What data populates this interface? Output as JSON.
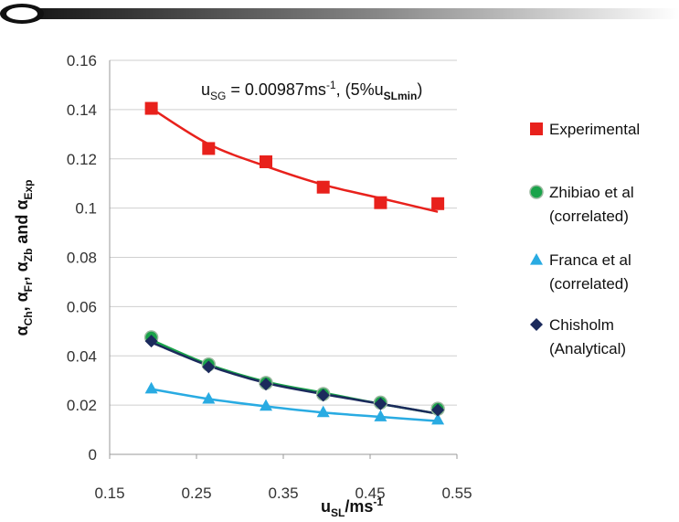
{
  "chart_data": {
    "type": "scatter",
    "title": "",
    "annotation": {
      "prefix": "u",
      "sub1": "SG",
      "mid": " = 0.00987ms",
      "sup": "-1",
      "mid2": ", (5%u",
      "sub2": "SLmin",
      "suffix": ")"
    },
    "xlabel": {
      "base": "u",
      "sub": "SL",
      "mid": "/ms",
      "sup": "-1"
    },
    "ylabel": {
      "parts": [
        {
          "t": "α",
          "s": "Ch"
        },
        {
          "t": ", α",
          "s": "Fr"
        },
        {
          "t": ", α",
          "s": "Zb"
        },
        {
          "t": " and α",
          "s": "Exp"
        }
      ]
    },
    "xlim": [
      0.15,
      0.55
    ],
    "ylim": [
      0,
      0.16
    ],
    "x_ticks": [
      "0.15",
      "0.25",
      "0.35",
      "0.45",
      "0.55"
    ],
    "y_ticks": [
      "0",
      "0.02",
      "0.04",
      "0.06",
      "0.08",
      "0.1",
      "0.12",
      "0.14",
      "0.16"
    ],
    "grid": "horizontal",
    "legend_position": "right",
    "series": [
      {
        "name_lines": [
          "Experimental"
        ],
        "marker": "square",
        "color": "#e8211c",
        "x": [
          0.198,
          0.264,
          0.33,
          0.396,
          0.462,
          0.528
        ],
        "y": [
          0.1405,
          0.1242,
          0.1188,
          0.1085,
          0.1022,
          0.1018
        ],
        "trend": [
          [
            0.198,
            0.1405
          ],
          [
            0.264,
            0.126
          ],
          [
            0.33,
            0.117
          ],
          [
            0.396,
            0.1095
          ],
          [
            0.462,
            0.104
          ],
          [
            0.528,
            0.0985
          ]
        ]
      },
      {
        "name_lines": [
          "Zhibiao et al",
          "(correlated)"
        ],
        "marker": "circle",
        "color": "#1aa34a",
        "x": [
          0.198,
          0.264,
          0.33,
          0.396,
          0.462,
          0.528
        ],
        "y": [
          0.0475,
          0.0365,
          0.029,
          0.0245,
          0.021,
          0.0185
        ],
        "trend": [
          [
            0.198,
            0.0465
          ],
          [
            0.264,
            0.0365
          ],
          [
            0.33,
            0.0295
          ],
          [
            0.396,
            0.025
          ],
          [
            0.462,
            0.0205
          ],
          [
            0.528,
            0.0165
          ]
        ]
      },
      {
        "name_lines": [
          "Franca et al",
          "(correlated)"
        ],
        "marker": "triangle",
        "color": "#29abe2",
        "x": [
          0.198,
          0.264,
          0.33,
          0.396,
          0.462,
          0.528
        ],
        "y": [
          0.0268,
          0.0227,
          0.0198,
          0.0172,
          0.0155,
          0.0142
        ],
        "trend": [
          [
            0.198,
            0.0265
          ],
          [
            0.264,
            0.0225
          ],
          [
            0.33,
            0.0195
          ],
          [
            0.396,
            0.017
          ],
          [
            0.462,
            0.0152
          ],
          [
            0.528,
            0.0135
          ]
        ]
      },
      {
        "name_lines": [
          "Chisholm",
          "(Analytical)"
        ],
        "marker": "diamond",
        "color": "#1b2a5c",
        "x": [
          0.198,
          0.264,
          0.33,
          0.396,
          0.462,
          0.528
        ],
        "y": [
          0.046,
          0.0355,
          0.0285,
          0.024,
          0.0205,
          0.018
        ],
        "trend": [
          [
            0.198,
            0.0455
          ],
          [
            0.264,
            0.036
          ],
          [
            0.33,
            0.029
          ],
          [
            0.396,
            0.0245
          ],
          [
            0.462,
            0.0205
          ],
          [
            0.528,
            0.0165
          ]
        ]
      }
    ]
  }
}
